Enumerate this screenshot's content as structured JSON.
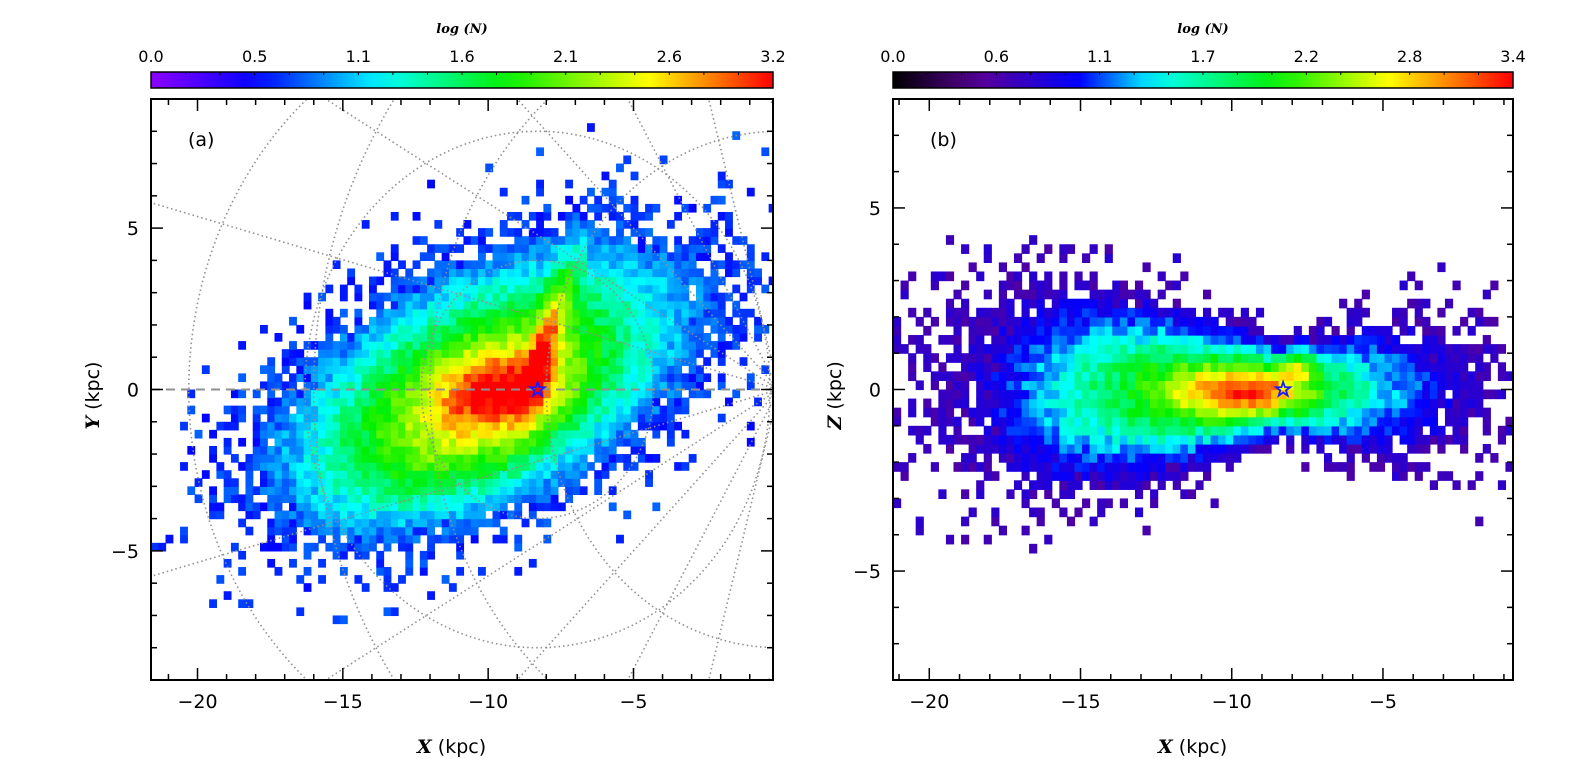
{
  "chart_data": [
    {
      "type": "heatmap",
      "panel_label": "(a)",
      "xlabel_var": "X",
      "xlabel_unit": " (kpc)",
      "ylabel_var": "Y",
      "ylabel_unit": " (kpc)",
      "xlim": [
        -21.6,
        -0.2
      ],
      "ylim": [
        -9,
        9
      ],
      "xticks": [
        -20,
        -15,
        -10,
        -5
      ],
      "xtick_labels": [
        "−20",
        "−15",
        "−10",
        "−5"
      ],
      "yticks": [
        -5,
        0,
        5
      ],
      "ytick_labels": [
        "−5",
        "0",
        "5"
      ],
      "colorbar": {
        "title": "log (N)",
        "min": 0,
        "max": 3.2,
        "tick_labels": [
          "0.0",
          "0.5",
          "1.1",
          "1.6",
          "2.1",
          "2.6",
          "3.2"
        ],
        "colormap": "rainbow"
      },
      "bin_size_kpc": 0.25,
      "sun_marker": {
        "x": -8.3,
        "y": 0
      },
      "grid": {
        "sun_circle_radii": [
          4,
          8,
          12,
          16
        ],
        "gc_ray_step_deg": 15,
        "dashed_line_y": 0
      },
      "density_model": {
        "peak": 3.2,
        "components": [
          {
            "cx": -10,
            "cy": 0.2,
            "sa": 5.5,
            "sb": 2.6,
            "angle_deg": 22,
            "amp": 2.2
          },
          {
            "cx": -9.6,
            "cy": 0,
            "sa": 1.6,
            "sb": 0.9,
            "angle_deg": 10,
            "amp": 1.0
          },
          {
            "cx": -7.9,
            "cy": 1.8,
            "sa": 1.8,
            "sb": 0.35,
            "angle_deg": 72,
            "amp": 1.0
          },
          {
            "cx": -11.5,
            "cy": -2,
            "sa": 3,
            "sb": 1.3,
            "angle_deg": 15,
            "amp": 0.4
          }
        ]
      }
    },
    {
      "type": "heatmap",
      "panel_label": "(b)",
      "xlabel_var": "X",
      "xlabel_unit": " (kpc)",
      "ylabel_var": "Z",
      "ylabel_unit": " (kpc)",
      "xlim": [
        -21.2,
        -0.7
      ],
      "ylim": [
        -8,
        8
      ],
      "xticks": [
        -20,
        -15,
        -10,
        -5
      ],
      "xtick_labels": [
        "−20",
        "−15",
        "−10",
        "−5"
      ],
      "yticks": [
        -5,
        0,
        5
      ],
      "ytick_labels": [
        "−5",
        "0",
        "5"
      ],
      "colorbar": {
        "title": "log (N)",
        "min": 0,
        "max": 3.4,
        "tick_labels": [
          "0.0",
          "0.6",
          "1.1",
          "1.7",
          "2.2",
          "2.8",
          "3.4"
        ],
        "colormap": "black-rainbow"
      },
      "bin_size_kpc": 0.25,
      "sun_marker": {
        "x": -8.3,
        "y": 0
      },
      "density_model": {
        "peak": 3.4,
        "components": [
          {
            "cx": -10.5,
            "cy": 0,
            "sa": 5.5,
            "sb": 2.2,
            "angle_deg": 0,
            "amp": 2.3
          },
          {
            "cx": -9.6,
            "cy": -0.1,
            "sa": 1.5,
            "sb": 0.5,
            "angle_deg": 0,
            "amp": 1.1
          },
          {
            "cx": -7.8,
            "cy": 0.7,
            "sa": 0.5,
            "sb": 0.3,
            "angle_deg": 0,
            "amp": 0.8
          }
        ]
      }
    }
  ],
  "colors": {
    "sun": "#1a1aff",
    "grid": "#909090"
  }
}
